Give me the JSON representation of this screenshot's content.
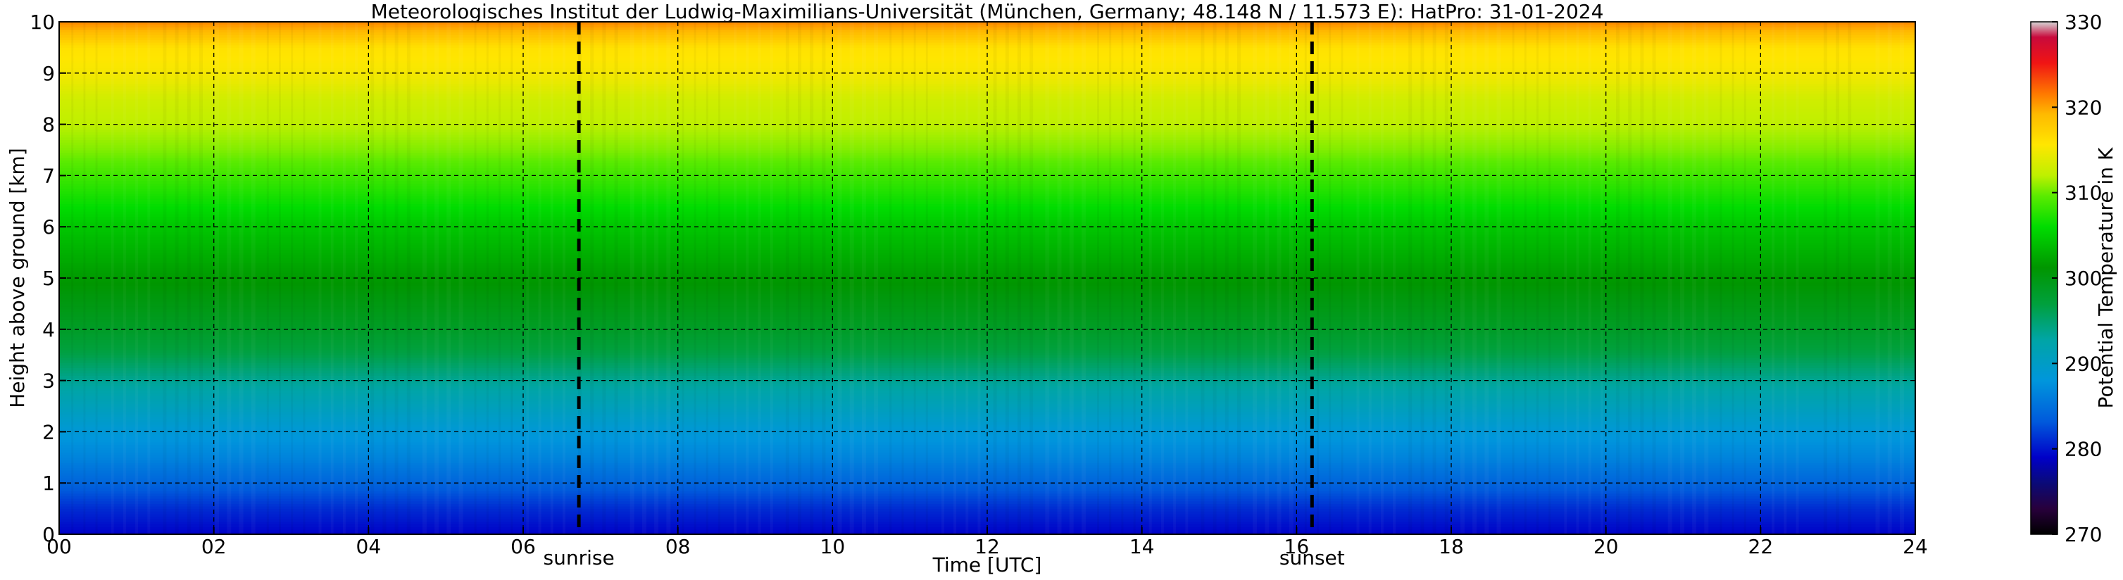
{
  "chart_data": {
    "type": "heatmap",
    "title": "Meteorologisches Institut der Ludwig-Maximilians-Universität (München, Germany; 48.148 N / 11.573 E):    HatPro: 31-01-2024",
    "xlabel": "Time [UTC]",
    "ylabel": "Height above ground [km]",
    "xlim": [
      0,
      24
    ],
    "ylim": [
      0,
      10
    ],
    "x_ticks": [
      0,
      2,
      4,
      6,
      8,
      10,
      12,
      14,
      16,
      18,
      20,
      22,
      24
    ],
    "x_tick_labels": [
      "00",
      "02",
      "04",
      "06",
      "08",
      "10",
      "12",
      "14",
      "16",
      "18",
      "20",
      "22",
      "24"
    ],
    "y_ticks": [
      0,
      1,
      2,
      3,
      4,
      5,
      6,
      7,
      8,
      9,
      10
    ],
    "y_tick_labels": [
      "0",
      "1",
      "2",
      "3",
      "4",
      "5",
      "6",
      "7",
      "8",
      "9",
      "10"
    ],
    "grid": true,
    "colorbar": {
      "label": "Potential Temperature in K",
      "range": [
        270,
        330
      ],
      "ticks": [
        270,
        280,
        290,
        300,
        310,
        320,
        330
      ]
    },
    "markers": [
      {
        "label": "sunrise",
        "x": 6.72
      },
      {
        "label": "sunset",
        "x": 16.2
      }
    ],
    "height_km": [
      0,
      0.5,
      1,
      1.5,
      2,
      2.5,
      3,
      3.5,
      4,
      4.5,
      5,
      5.5,
      6,
      6.5,
      7,
      7.5,
      8,
      8.5,
      9,
      9.5,
      10
    ],
    "theta_profile_K": [
      279,
      281,
      284,
      286.5,
      288.5,
      291,
      293.5,
      296.5,
      298.5,
      300,
      301.5,
      303,
      304.5,
      306.5,
      308.5,
      310.5,
      312,
      313,
      315,
      316,
      321
    ]
  }
}
